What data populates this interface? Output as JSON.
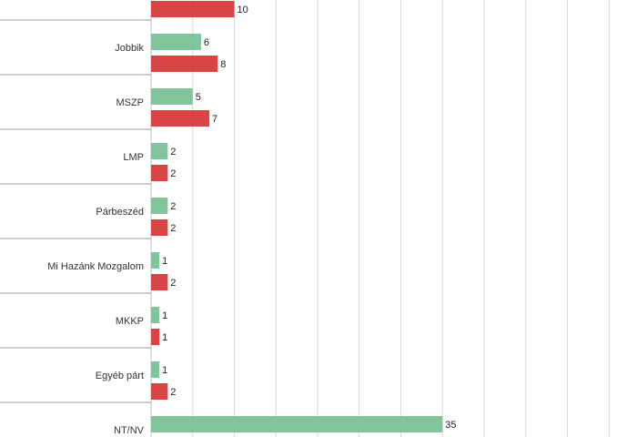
{
  "chart_data": {
    "type": "bar",
    "orientation": "horizontal",
    "categories": [
      "",
      "Jobbik",
      "MSZP",
      "LMP",
      "Párbeszéd",
      "Mi Hazánk Mozgalom",
      "MKKP",
      "Egyéb párt",
      "NT/NV"
    ],
    "series": [
      {
        "values": [
          null,
          6,
          5,
          2,
          2,
          1,
          1,
          1,
          35
        ],
        "color": "#82c49c"
      },
      {
        "values": [
          10,
          8,
          7,
          2,
          2,
          2,
          1,
          2,
          null
        ],
        "color": "#d94545"
      }
    ],
    "xlim": [
      0,
      56
    ],
    "grid": true
  }
}
